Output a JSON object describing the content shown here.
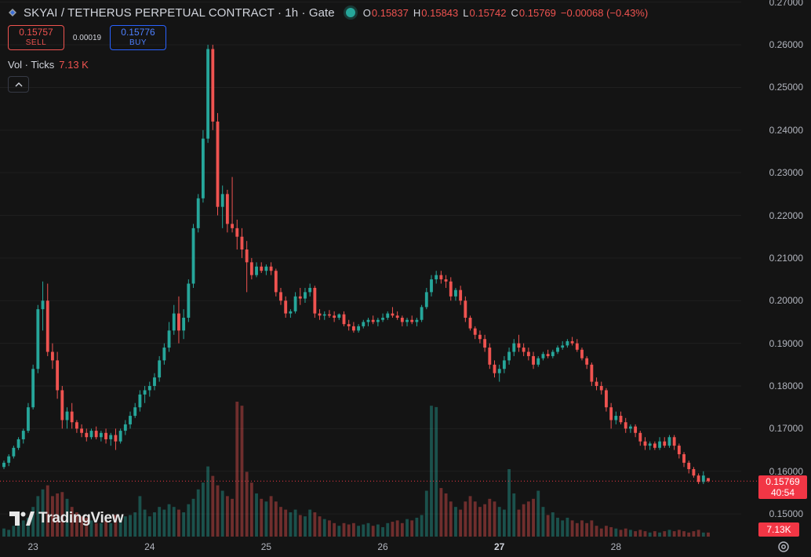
{
  "header": {
    "title": "SKYAI / TETHERUS PERPETUAL CONTRACT · 1h · Gate",
    "ohlc": {
      "o_label": "O",
      "o": "0.15837",
      "h_label": "H",
      "h": "0.15843",
      "l_label": "L",
      "l": "0.15742",
      "c_label": "C",
      "c": "0.15769",
      "change": "−0.00068 (−0.43%)"
    }
  },
  "trade": {
    "sell_price": "0.15757",
    "sell_label": "SELL",
    "spread": "0.00019",
    "buy_price": "0.15776",
    "buy_label": "BUY"
  },
  "volume": {
    "label": "Vol · Ticks",
    "value": "7.13 K"
  },
  "price_tag": {
    "price": "0.15769",
    "countdown": "40:54"
  },
  "volume_tag": "7.13K",
  "watermark": "TradingView",
  "icons": [
    "symbol-icon",
    "live-dot-icon",
    "chevron-up-icon",
    "tradingview-logo-icon",
    "settings-gear-icon"
  ],
  "colors": {
    "up": "#26a69a",
    "down": "#ef5350",
    "background": "#141414",
    "grid": "#1f1f1f",
    "current_price": "#f23645"
  },
  "chart_data": {
    "type": "candlestick",
    "symbol": "SKYAI / TETHERUS PERPETUAL CONTRACT",
    "interval": "1h",
    "exchange": "Gate",
    "ylim": [
      0.1445,
      0.2705
    ],
    "y_ticks": [
      "0.27000",
      "0.26000",
      "0.25000",
      "0.24000",
      "0.23000",
      "0.22000",
      "0.21000",
      "0.20000",
      "0.19000",
      "0.18000",
      "0.17000",
      "0.16000",
      "0.15000"
    ],
    "x_ticks": [
      {
        "label": "23",
        "bold": false
      },
      {
        "label": "24",
        "bold": false
      },
      {
        "label": "25",
        "bold": false
      },
      {
        "label": "26",
        "bold": false
      },
      {
        "label": "27",
        "bold": true
      },
      {
        "label": "28",
        "bold": false
      }
    ],
    "grid": true,
    "current_price": 0.15769,
    "candles_description": "hourly OHLC approximated from chart; volume as relative level 0-1",
    "candles": [
      [
        0.161,
        0.1625,
        0.1605,
        0.162,
        0.06
      ],
      [
        0.162,
        0.164,
        0.1612,
        0.1635,
        0.05
      ],
      [
        0.1635,
        0.166,
        0.163,
        0.1655,
        0.08
      ],
      [
        0.1655,
        0.168,
        0.165,
        0.1675,
        0.1
      ],
      [
        0.1675,
        0.17,
        0.1665,
        0.1695,
        0.12
      ],
      [
        0.1695,
        0.176,
        0.169,
        0.175,
        0.14
      ],
      [
        0.175,
        0.185,
        0.1745,
        0.184,
        0.22
      ],
      [
        0.184,
        0.199,
        0.183,
        0.198,
        0.3
      ],
      [
        0.198,
        0.2045,
        0.193,
        0.2,
        0.35
      ],
      [
        0.2,
        0.204,
        0.187,
        0.188,
        0.38
      ],
      [
        0.188,
        0.19,
        0.184,
        0.186,
        0.3
      ],
      [
        0.186,
        0.188,
        0.177,
        0.179,
        0.32
      ],
      [
        0.179,
        0.18,
        0.17,
        0.172,
        0.33
      ],
      [
        0.172,
        0.175,
        0.17,
        0.174,
        0.28
      ],
      [
        0.174,
        0.176,
        0.17,
        0.1715,
        0.22
      ],
      [
        0.1715,
        0.172,
        0.169,
        0.17,
        0.18
      ],
      [
        0.17,
        0.171,
        0.168,
        0.169,
        0.15
      ],
      [
        0.169,
        0.17,
        0.167,
        0.168,
        0.14
      ],
      [
        0.168,
        0.17,
        0.1675,
        0.1695,
        0.12
      ],
      [
        0.1695,
        0.1705,
        0.1675,
        0.168,
        0.1
      ],
      [
        0.168,
        0.1695,
        0.167,
        0.169,
        0.1
      ],
      [
        0.169,
        0.17,
        0.1665,
        0.1675,
        0.12
      ],
      [
        0.1675,
        0.169,
        0.166,
        0.1685,
        0.1
      ],
      [
        0.1685,
        0.17,
        0.165,
        0.167,
        0.16
      ],
      [
        0.167,
        0.17,
        0.1665,
        0.1695,
        0.14
      ],
      [
        0.1695,
        0.172,
        0.1685,
        0.171,
        0.15
      ],
      [
        0.171,
        0.174,
        0.17,
        0.173,
        0.16
      ],
      [
        0.173,
        0.176,
        0.1725,
        0.175,
        0.18
      ],
      [
        0.175,
        0.179,
        0.174,
        0.178,
        0.3
      ],
      [
        0.178,
        0.18,
        0.176,
        0.179,
        0.2
      ],
      [
        0.179,
        0.181,
        0.1775,
        0.18,
        0.15
      ],
      [
        0.18,
        0.183,
        0.179,
        0.182,
        0.18
      ],
      [
        0.182,
        0.187,
        0.181,
        0.186,
        0.22
      ],
      [
        0.186,
        0.19,
        0.185,
        0.189,
        0.2
      ],
      [
        0.189,
        0.195,
        0.188,
        0.193,
        0.24
      ],
      [
        0.193,
        0.199,
        0.192,
        0.197,
        0.22
      ],
      [
        0.197,
        0.201,
        0.19,
        0.193,
        0.2
      ],
      [
        0.193,
        0.198,
        0.191,
        0.196,
        0.18
      ],
      [
        0.196,
        0.205,
        0.195,
        0.204,
        0.24
      ],
      [
        0.204,
        0.218,
        0.203,
        0.217,
        0.28
      ],
      [
        0.217,
        0.225,
        0.216,
        0.224,
        0.35
      ],
      [
        0.224,
        0.24,
        0.223,
        0.238,
        0.4
      ],
      [
        0.238,
        0.26,
        0.237,
        0.259,
        0.52
      ],
      [
        0.259,
        0.26,
        0.24,
        0.242,
        0.45
      ],
      [
        0.242,
        0.244,
        0.22,
        0.222,
        0.38
      ],
      [
        0.222,
        0.227,
        0.217,
        0.225,
        0.34
      ],
      [
        0.225,
        0.226,
        0.216,
        0.218,
        0.3
      ],
      [
        0.218,
        0.229,
        0.216,
        0.217,
        0.28
      ],
      [
        0.217,
        0.219,
        0.212,
        0.215,
        1.0
      ],
      [
        0.215,
        0.217,
        0.21,
        0.212,
        0.97
      ],
      [
        0.212,
        0.214,
        0.202,
        0.209,
        0.48
      ],
      [
        0.209,
        0.21,
        0.205,
        0.206,
        0.4
      ],
      [
        0.206,
        0.209,
        0.2055,
        0.208,
        0.32
      ],
      [
        0.208,
        0.209,
        0.2065,
        0.207,
        0.28
      ],
      [
        0.207,
        0.2085,
        0.206,
        0.208,
        0.26
      ],
      [
        0.208,
        0.209,
        0.206,
        0.207,
        0.3
      ],
      [
        0.207,
        0.2075,
        0.201,
        0.202,
        0.26
      ],
      [
        0.202,
        0.203,
        0.199,
        0.2,
        0.22
      ],
      [
        0.2,
        0.201,
        0.196,
        0.197,
        0.2
      ],
      [
        0.197,
        0.198,
        0.196,
        0.1975,
        0.18
      ],
      [
        0.1975,
        0.202,
        0.197,
        0.201,
        0.2
      ],
      [
        0.201,
        0.203,
        0.199,
        0.2005,
        0.16
      ],
      [
        0.2005,
        0.203,
        0.1995,
        0.202,
        0.15
      ],
      [
        0.202,
        0.204,
        0.201,
        0.203,
        0.2
      ],
      [
        0.203,
        0.2035,
        0.196,
        0.197,
        0.18
      ],
      [
        0.197,
        0.198,
        0.1955,
        0.1965,
        0.15
      ],
      [
        0.1965,
        0.1975,
        0.1955,
        0.1968,
        0.13
      ],
      [
        0.1968,
        0.1978,
        0.196,
        0.1965,
        0.12
      ],
      [
        0.1965,
        0.1975,
        0.195,
        0.196,
        0.1
      ],
      [
        0.196,
        0.197,
        0.1955,
        0.1968,
        0.08
      ],
      [
        0.1968,
        0.1975,
        0.194,
        0.1945,
        0.1
      ],
      [
        0.1945,
        0.1955,
        0.193,
        0.194,
        0.09
      ],
      [
        0.194,
        0.195,
        0.1925,
        0.193,
        0.1
      ],
      [
        0.193,
        0.1945,
        0.1925,
        0.194,
        0.08
      ],
      [
        0.194,
        0.1955,
        0.1935,
        0.195,
        0.09
      ],
      [
        0.195,
        0.196,
        0.194,
        0.1955,
        0.1
      ],
      [
        0.1955,
        0.1965,
        0.1945,
        0.195,
        0.08
      ],
      [
        0.195,
        0.196,
        0.194,
        0.1955,
        0.09
      ],
      [
        0.1955,
        0.197,
        0.195,
        0.196,
        0.07
      ],
      [
        0.196,
        0.1975,
        0.1955,
        0.197,
        0.1
      ],
      [
        0.197,
        0.1985,
        0.196,
        0.1965,
        0.11
      ],
      [
        0.1965,
        0.1975,
        0.1955,
        0.196,
        0.12
      ],
      [
        0.196,
        0.1965,
        0.194,
        0.195,
        0.1
      ],
      [
        0.195,
        0.196,
        0.194,
        0.1955,
        0.13
      ],
      [
        0.1955,
        0.1965,
        0.1945,
        0.195,
        0.12
      ],
      [
        0.195,
        0.196,
        0.194,
        0.1955,
        0.14
      ],
      [
        0.1955,
        0.199,
        0.195,
        0.1985,
        0.16
      ],
      [
        0.1985,
        0.203,
        0.198,
        0.202,
        0.34
      ],
      [
        0.202,
        0.206,
        0.201,
        0.205,
        0.97
      ],
      [
        0.205,
        0.207,
        0.204,
        0.206,
        0.96
      ],
      [
        0.206,
        0.207,
        0.204,
        0.205,
        0.36
      ],
      [
        0.205,
        0.206,
        0.203,
        0.2045,
        0.32
      ],
      [
        0.2045,
        0.2055,
        0.2,
        0.201,
        0.26
      ],
      [
        0.201,
        0.203,
        0.2,
        0.2025,
        0.22
      ],
      [
        0.2025,
        0.2035,
        0.199,
        0.2,
        0.2
      ],
      [
        0.2,
        0.201,
        0.195,
        0.196,
        0.26
      ],
      [
        0.196,
        0.1965,
        0.193,
        0.1935,
        0.3
      ],
      [
        0.1935,
        0.194,
        0.191,
        0.192,
        0.26
      ],
      [
        0.192,
        0.193,
        0.19,
        0.191,
        0.22
      ],
      [
        0.191,
        0.192,
        0.188,
        0.189,
        0.24
      ],
      [
        0.189,
        0.19,
        0.184,
        0.185,
        0.28
      ],
      [
        0.185,
        0.186,
        0.182,
        0.183,
        0.26
      ],
      [
        0.183,
        0.185,
        0.181,
        0.184,
        0.22
      ],
      [
        0.184,
        0.187,
        0.183,
        0.186,
        0.2
      ],
      [
        0.186,
        0.189,
        0.185,
        0.188,
        0.5
      ],
      [
        0.188,
        0.191,
        0.187,
        0.19,
        0.32
      ],
      [
        0.19,
        0.192,
        0.188,
        0.189,
        0.2
      ],
      [
        0.189,
        0.19,
        0.187,
        0.188,
        0.24
      ],
      [
        0.188,
        0.189,
        0.186,
        0.187,
        0.26
      ],
      [
        0.187,
        0.188,
        0.184,
        0.185,
        0.28
      ],
      [
        0.185,
        0.187,
        0.1845,
        0.1865,
        0.34
      ],
      [
        0.1865,
        0.188,
        0.186,
        0.1875,
        0.22
      ],
      [
        0.1875,
        0.1885,
        0.1865,
        0.187,
        0.16
      ],
      [
        0.187,
        0.1885,
        0.1865,
        0.188,
        0.18
      ],
      [
        0.188,
        0.1895,
        0.1875,
        0.189,
        0.14
      ],
      [
        0.189,
        0.1905,
        0.1885,
        0.1895,
        0.12
      ],
      [
        0.1895,
        0.191,
        0.189,
        0.1905,
        0.14
      ],
      [
        0.1905,
        0.1915,
        0.1895,
        0.19,
        0.12
      ],
      [
        0.19,
        0.191,
        0.188,
        0.1885,
        0.1
      ],
      [
        0.1885,
        0.189,
        0.186,
        0.1865,
        0.12
      ],
      [
        0.1865,
        0.187,
        0.184,
        0.185,
        0.1
      ],
      [
        0.185,
        0.1855,
        0.18,
        0.181,
        0.12
      ],
      [
        0.181,
        0.182,
        0.179,
        0.18,
        0.08
      ],
      [
        0.18,
        0.181,
        0.178,
        0.179,
        0.06
      ],
      [
        0.179,
        0.1795,
        0.174,
        0.175,
        0.08
      ],
      [
        0.175,
        0.176,
        0.17,
        0.172,
        0.07
      ],
      [
        0.172,
        0.174,
        0.171,
        0.173,
        0.06
      ],
      [
        0.173,
        0.174,
        0.171,
        0.1715,
        0.05
      ],
      [
        0.1715,
        0.1725,
        0.169,
        0.17,
        0.06
      ],
      [
        0.17,
        0.171,
        0.169,
        0.1705,
        0.05
      ],
      [
        0.1705,
        0.171,
        0.168,
        0.169,
        0.04
      ],
      [
        0.169,
        0.1695,
        0.166,
        0.167,
        0.05
      ],
      [
        0.167,
        0.168,
        0.165,
        0.166,
        0.04
      ],
      [
        0.166,
        0.167,
        0.165,
        0.1665,
        0.03
      ],
      [
        0.1665,
        0.167,
        0.165,
        0.1655,
        0.04
      ],
      [
        0.1655,
        0.168,
        0.165,
        0.167,
        0.03
      ],
      [
        0.167,
        0.168,
        0.1655,
        0.166,
        0.04
      ],
      [
        0.166,
        0.1685,
        0.1655,
        0.168,
        0.05
      ],
      [
        0.168,
        0.1685,
        0.165,
        0.166,
        0.04
      ],
      [
        0.166,
        0.1665,
        0.163,
        0.164,
        0.05
      ],
      [
        0.164,
        0.1645,
        0.161,
        0.162,
        0.04
      ],
      [
        0.162,
        0.1625,
        0.1595,
        0.1605,
        0.03
      ],
      [
        0.1605,
        0.161,
        0.1585,
        0.159,
        0.04
      ],
      [
        0.159,
        0.1595,
        0.157,
        0.1575,
        0.05
      ],
      [
        0.1575,
        0.16,
        0.157,
        0.159,
        0.03
      ],
      [
        0.1584,
        0.1584,
        0.1574,
        0.1577,
        0.03
      ]
    ]
  }
}
